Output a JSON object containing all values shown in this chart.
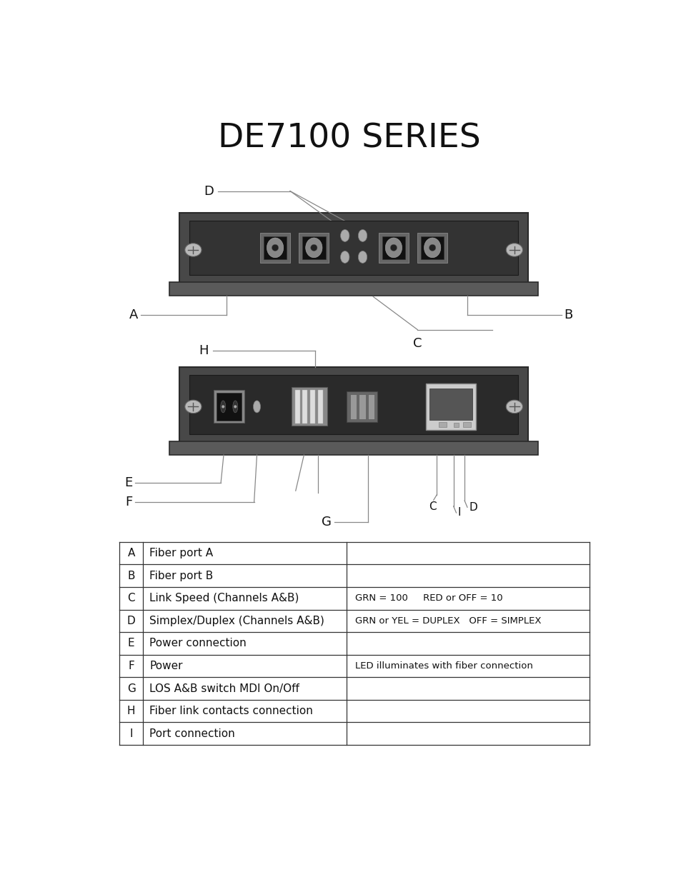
{
  "title": "DE7100 SERIES",
  "title_fontsize": 34,
  "bg_color": "#ffffff",
  "table_rows": [
    [
      "A",
      "Fiber port A",
      ""
    ],
    [
      "B",
      "Fiber port B",
      ""
    ],
    [
      "C",
      "Link Speed (Channels A&B)",
      "GRN = 100     RED or OFF = 10"
    ],
    [
      "D",
      "Simplex/Duplex (Channels A&B)",
      "GRN or YEL = DUPLEX   OFF = SIMPLEX"
    ],
    [
      "E",
      "Power connection",
      ""
    ],
    [
      "F",
      "Power",
      "LED illuminates with fiber connection"
    ],
    [
      "G",
      "LOS A&B switch MDI On/Off",
      ""
    ],
    [
      "H",
      "Fiber link contacts connection",
      ""
    ],
    [
      "I",
      "Port connection",
      ""
    ]
  ],
  "panel1_color": "#484848",
  "panel1_inner": "#333333",
  "panel2_color": "#484848",
  "panel2_inner": "#2a2a2a",
  "shelf_color": "#5a5a5a",
  "port_bg": "#555555",
  "port_inner_color": "#111111",
  "port_lens": "#888888",
  "led_color": "#aaaaaa",
  "screw_color": "#b0b0b0",
  "line_color": "#888888",
  "table_font_size": 11,
  "label_font_size": 13,
  "label_font_size2": 11
}
